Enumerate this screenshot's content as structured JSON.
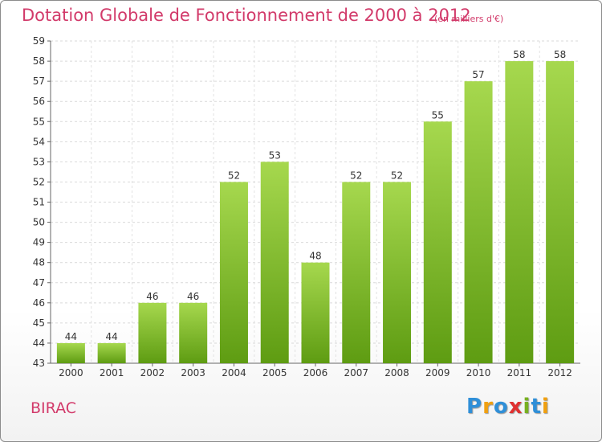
{
  "chart_data": {
    "type": "bar",
    "title": "Dotation Globale de Fonctionnement de 2000 à 2012",
    "subtitle": "(en milliers d'€)",
    "categories": [
      "2000",
      "2001",
      "2002",
      "2003",
      "2004",
      "2005",
      "2006",
      "2007",
      "2008",
      "2009",
      "2010",
      "2011",
      "2012"
    ],
    "values": [
      44,
      44,
      46,
      46,
      52,
      53,
      48,
      52,
      52,
      55,
      57,
      58,
      58
    ],
    "ylim": [
      43,
      59
    ],
    "yticks": [
      43,
      44,
      45,
      46,
      47,
      48,
      49,
      50,
      51,
      52,
      53,
      54,
      55,
      56,
      57,
      58,
      59
    ],
    "grid": true,
    "xlabel": "",
    "ylabel": ""
  },
  "commune": "BIRAC",
  "logo": {
    "letters": [
      "P",
      "r",
      "o",
      "x",
      "i",
      "t",
      "i"
    ],
    "colors": [
      "#2f8fd8",
      "#f0a010",
      "#2f8fd8",
      "#e03030",
      "#78b020",
      "#2f8fd8",
      "#f0a010"
    ]
  },
  "colors": {
    "title": "#d23a6a",
    "bar_top": "#a6d84e",
    "bar_bottom": "#5e9c12"
  }
}
